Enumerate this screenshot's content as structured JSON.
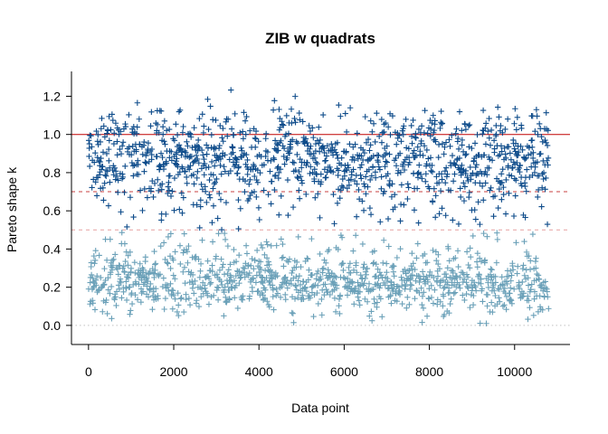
{
  "chart_data": {
    "type": "scatter",
    "title": "ZIB w quadrats",
    "xlabel": "Data point",
    "ylabel": "Pareto shape k",
    "xlim": [
      -400,
      11300
    ],
    "ylim": [
      -0.1,
      1.33
    ],
    "x_ticks": [
      0,
      2000,
      4000,
      6000,
      8000,
      10000
    ],
    "x_tick_labels": [
      "0",
      "2000",
      "4000",
      "6000",
      "8000",
      "10000"
    ],
    "y_ticks": [
      0.0,
      0.2,
      0.4,
      0.6,
      0.8,
      1.0,
      1.2
    ],
    "y_tick_labels": [
      "0.0",
      "0.2",
      "0.4",
      "0.6",
      "0.8",
      "1.0",
      "1.2"
    ],
    "n_points": 10800,
    "marker": "plus",
    "reference_lines": [
      {
        "y": 0.0,
        "style": "dotted",
        "color": "#c0c0c0"
      },
      {
        "y": 0.5,
        "style": "dashed",
        "color": "#e6a0a0"
      },
      {
        "y": 0.7,
        "style": "dashed",
        "color": "#c84040"
      },
      {
        "y": 1.0,
        "style": "solid",
        "color": "#c00000"
      }
    ],
    "series": [
      {
        "color": "#6aa0b8",
        "y_range": [
          -0.05,
          0.5
        ],
        "y_center": 0.22
      },
      {
        "color": "#0d4b8a",
        "y_range": [
          0.5,
          1.28
        ],
        "y_center": 0.87
      }
    ],
    "grid": false,
    "legend": "none"
  }
}
